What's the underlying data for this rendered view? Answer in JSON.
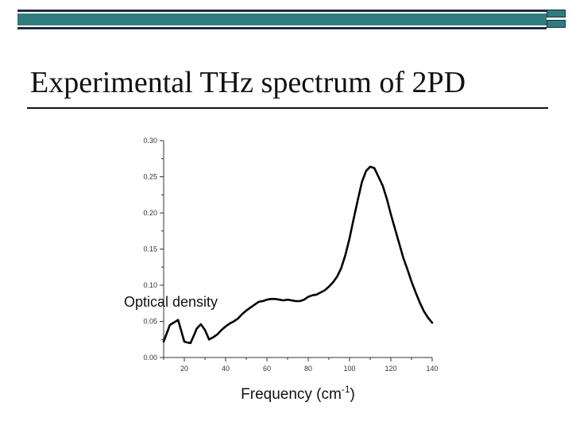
{
  "slide": {
    "title": "Experimental THz spectrum of 2PD",
    "accent_color": "#2e7d7c",
    "dark_color": "#1f2a44"
  },
  "chart_data": {
    "type": "line",
    "title": "",
    "xlabel_main": "Frequency (cm",
    "xlabel_sup": "-1",
    "xlabel_end": ")",
    "ylabel": "Optical density",
    "xlim": [
      10,
      140
    ],
    "ylim": [
      0.0,
      0.3
    ],
    "x_ticks": [
      20,
      40,
      60,
      80,
      100,
      120,
      140
    ],
    "x_tick_labels": [
      "20",
      "40",
      "60",
      "80",
      "100",
      "120",
      "140"
    ],
    "y_ticks": [
      0.0,
      0.05,
      0.1,
      0.15,
      0.2,
      0.25,
      0.3
    ],
    "y_tick_labels": [
      "0.00",
      "0.05",
      "0.10",
      "0.15",
      "0.20",
      "0.25",
      "0.30"
    ],
    "grid": false,
    "series": [
      {
        "x": [
          10,
          13,
          17,
          20,
          21,
          23,
          25,
          26,
          28,
          30,
          32,
          34,
          36,
          38,
          40,
          42,
          44,
          46,
          48,
          50,
          52,
          54,
          56,
          58,
          60,
          62,
          64,
          66,
          68,
          70,
          72,
          74,
          76,
          78,
          80,
          82,
          84,
          86,
          88,
          90,
          92,
          94,
          96,
          98,
          100,
          102,
          104,
          106,
          108,
          110,
          112,
          114,
          116,
          118,
          120,
          122,
          124,
          126,
          128,
          130,
          132,
          134,
          136,
          138,
          140
        ],
        "y": [
          0.022,
          0.045,
          0.052,
          0.022,
          0.021,
          0.02,
          0.033,
          0.04,
          0.046,
          0.038,
          0.025,
          0.028,
          0.032,
          0.038,
          0.043,
          0.047,
          0.05,
          0.054,
          0.06,
          0.065,
          0.069,
          0.073,
          0.077,
          0.078,
          0.08,
          0.081,
          0.081,
          0.08,
          0.079,
          0.08,
          0.079,
          0.078,
          0.078,
          0.08,
          0.084,
          0.086,
          0.087,
          0.09,
          0.093,
          0.098,
          0.104,
          0.112,
          0.124,
          0.142,
          0.165,
          0.192,
          0.218,
          0.243,
          0.258,
          0.264,
          0.262,
          0.25,
          0.238,
          0.22,
          0.198,
          0.178,
          0.158,
          0.138,
          0.122,
          0.105,
          0.09,
          0.076,
          0.064,
          0.055,
          0.048
        ]
      }
    ]
  }
}
